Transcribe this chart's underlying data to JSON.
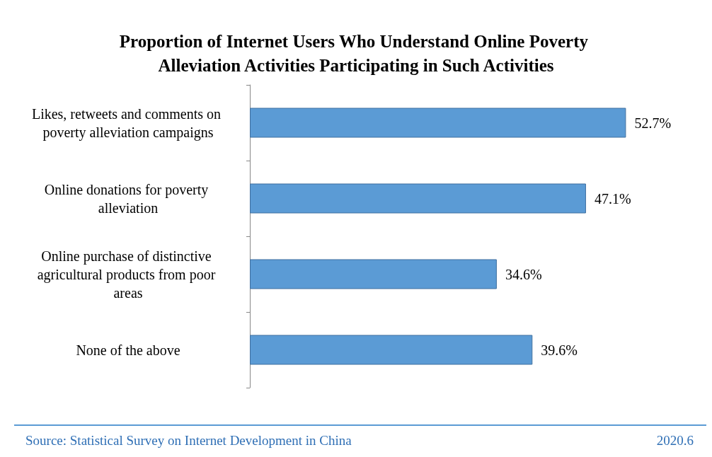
{
  "chart_data": {
    "type": "bar",
    "orientation": "horizontal",
    "title": "Proportion of Internet Users Who Understand Online Poverty Alleviation Activities Participating in Such Activities",
    "categories": [
      "Likes, retweets and comments on poverty alleviation campaigns",
      "Online donations for poverty alleviation",
      "Online purchase of distinctive agricultural products from poor areas",
      "None of the above"
    ],
    "values": [
      52.7,
      47.1,
      34.6,
      39.6
    ],
    "value_labels": [
      "52.7%",
      "47.1%",
      "34.6%",
      "39.6%"
    ],
    "color": "#5b9bd5",
    "annotations": [
      "Source: Statistical Survey on Internet Development in China",
      "2020.6"
    ]
  }
}
